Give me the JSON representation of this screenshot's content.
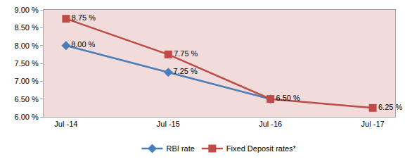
{
  "chart_data": {
    "type": "line",
    "categories": [
      "Jul -14",
      "Jul -15",
      "Jul -16",
      "Jul -17"
    ],
    "series": [
      {
        "name": "RBI rate",
        "color": "#4a7ebb",
        "marker": "diamond",
        "line_style": "solid",
        "values": [
          8.0,
          7.25,
          6.5,
          null
        ],
        "value_labels": [
          "8.00 %",
          "7.25 %",
          null,
          null
        ]
      },
      {
        "name": "Fixed Deposit rates*",
        "color": "#be4b48",
        "marker": "square",
        "line_style": "solid",
        "values": [
          8.75,
          7.75,
          6.5,
          6.25
        ],
        "value_labels": [
          "8.75 %",
          "7.75 %",
          "6.50 %",
          "6.25 %"
        ]
      }
    ],
    "ylim": [
      6.0,
      9.0
    ],
    "yticks": [
      {
        "value": 6.0,
        "label": "6.00 %"
      },
      {
        "value": 6.5,
        "label": "6.50 %"
      },
      {
        "value": 7.0,
        "label": "7.00 %"
      },
      {
        "value": 7.5,
        "label": "7.50 %"
      },
      {
        "value": 8.0,
        "label": "8.00 %"
      },
      {
        "value": 8.5,
        "label": "8.50 %"
      },
      {
        "value": 9.0,
        "label": "9.00 %"
      }
    ],
    "grid": false,
    "legend": "bottom",
    "data_labels": true
  }
}
